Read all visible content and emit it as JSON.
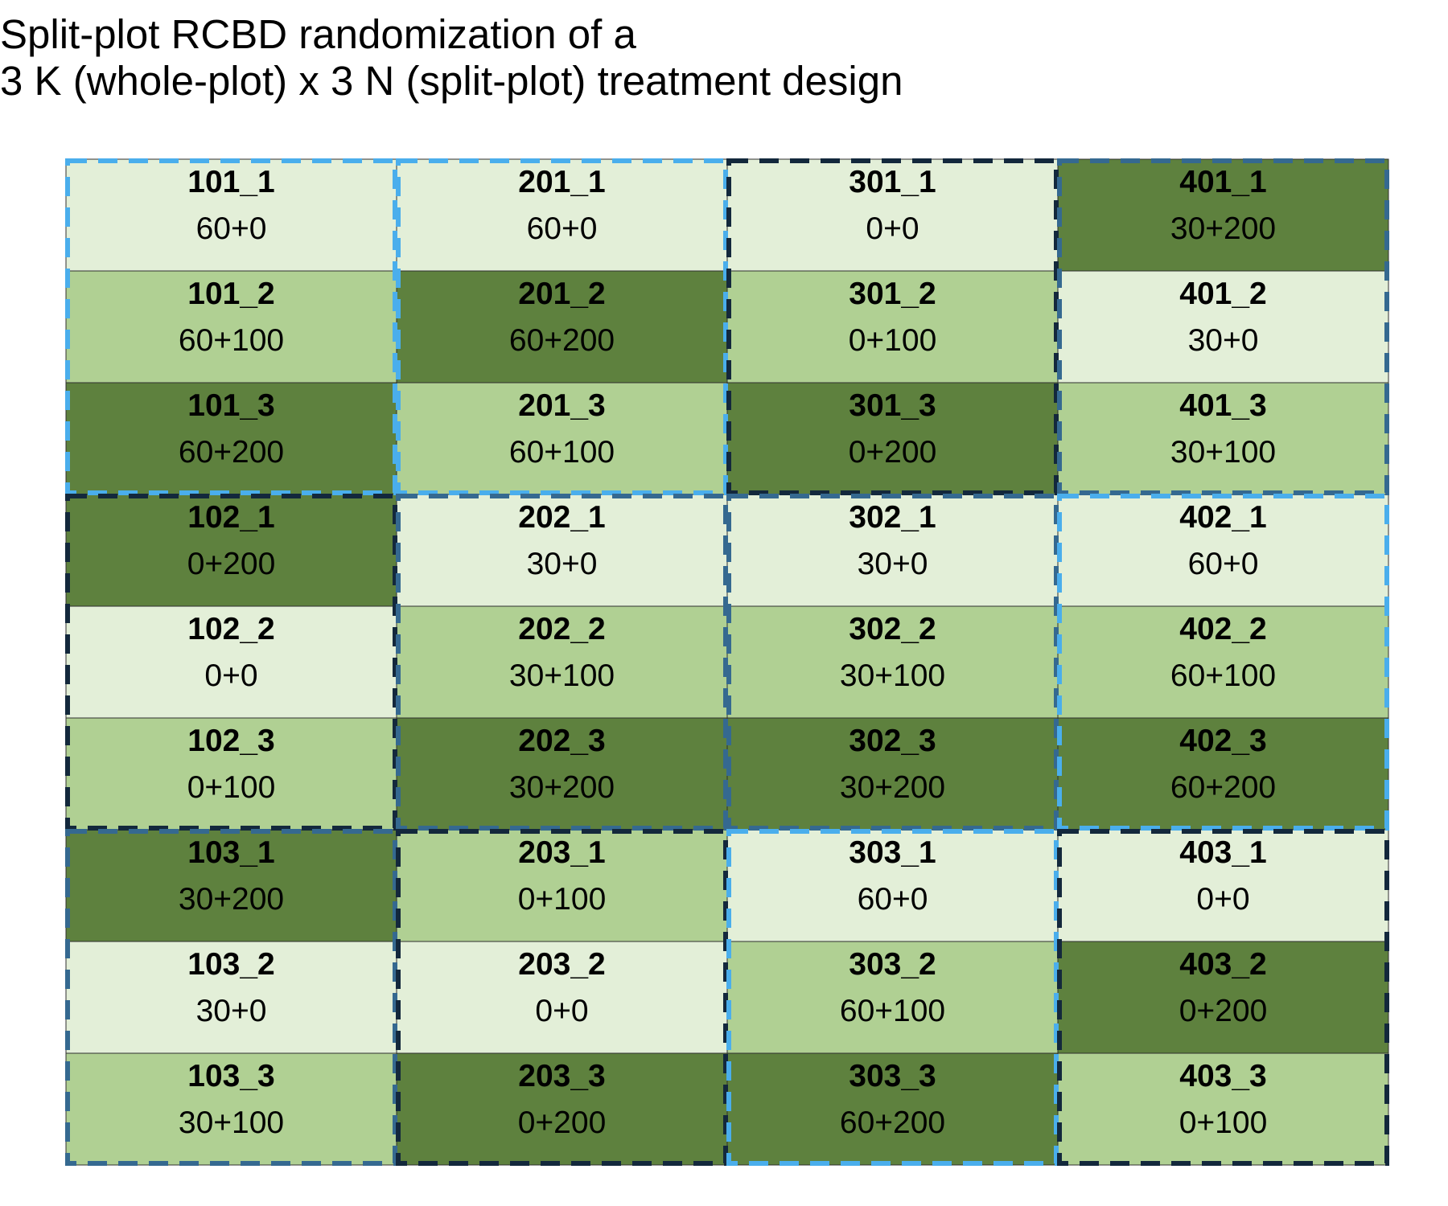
{
  "title": {
    "line1": "Split-plot RCBD randomization of a",
    "line2": "3 K (whole-plot) x 3 N (split-plot) treatment design"
  },
  "colors": {
    "n_levels": {
      "0": "#e3efd8",
      "100": "#b0d093",
      "200": "#5e813e"
    },
    "k_levels": {
      "0": "#13283c",
      "30": "#356990",
      "60": "#4aaeec"
    },
    "cell_border": "#2f2f2f"
  },
  "grid": {
    "columns": [
      {
        "whole_plots": [
          {
            "k": "60",
            "subplots": [
              {
                "id": "101_1",
                "trt": "60+0",
                "n": "0"
              },
              {
                "id": "101_2",
                "trt": "60+100",
                "n": "100"
              },
              {
                "id": "101_3",
                "trt": "60+200",
                "n": "200"
              }
            ]
          },
          {
            "k": "0",
            "subplots": [
              {
                "id": "102_1",
                "trt": "0+200",
                "n": "200"
              },
              {
                "id": "102_2",
                "trt": "0+0",
                "n": "0"
              },
              {
                "id": "102_3",
                "trt": "0+100",
                "n": "100"
              }
            ]
          },
          {
            "k": "30",
            "subplots": [
              {
                "id": "103_1",
                "trt": "30+200",
                "n": "200"
              },
              {
                "id": "103_2",
                "trt": "30+0",
                "n": "0"
              },
              {
                "id": "103_3",
                "trt": "30+100",
                "n": "100"
              }
            ]
          }
        ]
      },
      {
        "whole_plots": [
          {
            "k": "60",
            "subplots": [
              {
                "id": "201_1",
                "trt": "60+0",
                "n": "0"
              },
              {
                "id": "201_2",
                "trt": "60+200",
                "n": "200"
              },
              {
                "id": "201_3",
                "trt": "60+100",
                "n": "100"
              }
            ]
          },
          {
            "k": "30",
            "subplots": [
              {
                "id": "202_1",
                "trt": "30+0",
                "n": "0"
              },
              {
                "id": "202_2",
                "trt": "30+100",
                "n": "100"
              },
              {
                "id": "202_3",
                "trt": "30+200",
                "n": "200"
              }
            ]
          },
          {
            "k": "0",
            "subplots": [
              {
                "id": "203_1",
                "trt": "0+100",
                "n": "100"
              },
              {
                "id": "203_2",
                "trt": "0+0",
                "n": "0"
              },
              {
                "id": "203_3",
                "trt": "0+200",
                "n": "200"
              }
            ]
          }
        ]
      },
      {
        "whole_plots": [
          {
            "k": "0",
            "subplots": [
              {
                "id": "301_1",
                "trt": "0+0",
                "n": "0"
              },
              {
                "id": "301_2",
                "trt": "0+100",
                "n": "100"
              },
              {
                "id": "301_3",
                "trt": "0+200",
                "n": "200"
              }
            ]
          },
          {
            "k": "30",
            "subplots": [
              {
                "id": "302_1",
                "trt": "30+0",
                "n": "0"
              },
              {
                "id": "302_2",
                "trt": "30+100",
                "n": "100"
              },
              {
                "id": "302_3",
                "trt": "30+200",
                "n": "200"
              }
            ]
          },
          {
            "k": "60",
            "subplots": [
              {
                "id": "303_1",
                "trt": "60+0",
                "n": "0"
              },
              {
                "id": "303_2",
                "trt": "60+100",
                "n": "100"
              },
              {
                "id": "303_3",
                "trt": "60+200",
                "n": "200"
              }
            ]
          }
        ]
      },
      {
        "whole_plots": [
          {
            "k": "30",
            "subplots": [
              {
                "id": "401_1",
                "trt": "30+200",
                "n": "200"
              },
              {
                "id": "401_2",
                "trt": "30+0",
                "n": "0"
              },
              {
                "id": "401_3",
                "trt": "30+100",
                "n": "100"
              }
            ]
          },
          {
            "k": "60",
            "subplots": [
              {
                "id": "402_1",
                "trt": "60+0",
                "n": "0"
              },
              {
                "id": "402_2",
                "trt": "60+100",
                "n": "100"
              },
              {
                "id": "402_3",
                "trt": "60+200",
                "n": "200"
              }
            ]
          },
          {
            "k": "0",
            "subplots": [
              {
                "id": "403_1",
                "trt": "0+0",
                "n": "0"
              },
              {
                "id": "403_2",
                "trt": "0+200",
                "n": "200"
              },
              {
                "id": "403_3",
                "trt": "0+100",
                "n": "100"
              }
            ]
          }
        ]
      }
    ]
  }
}
